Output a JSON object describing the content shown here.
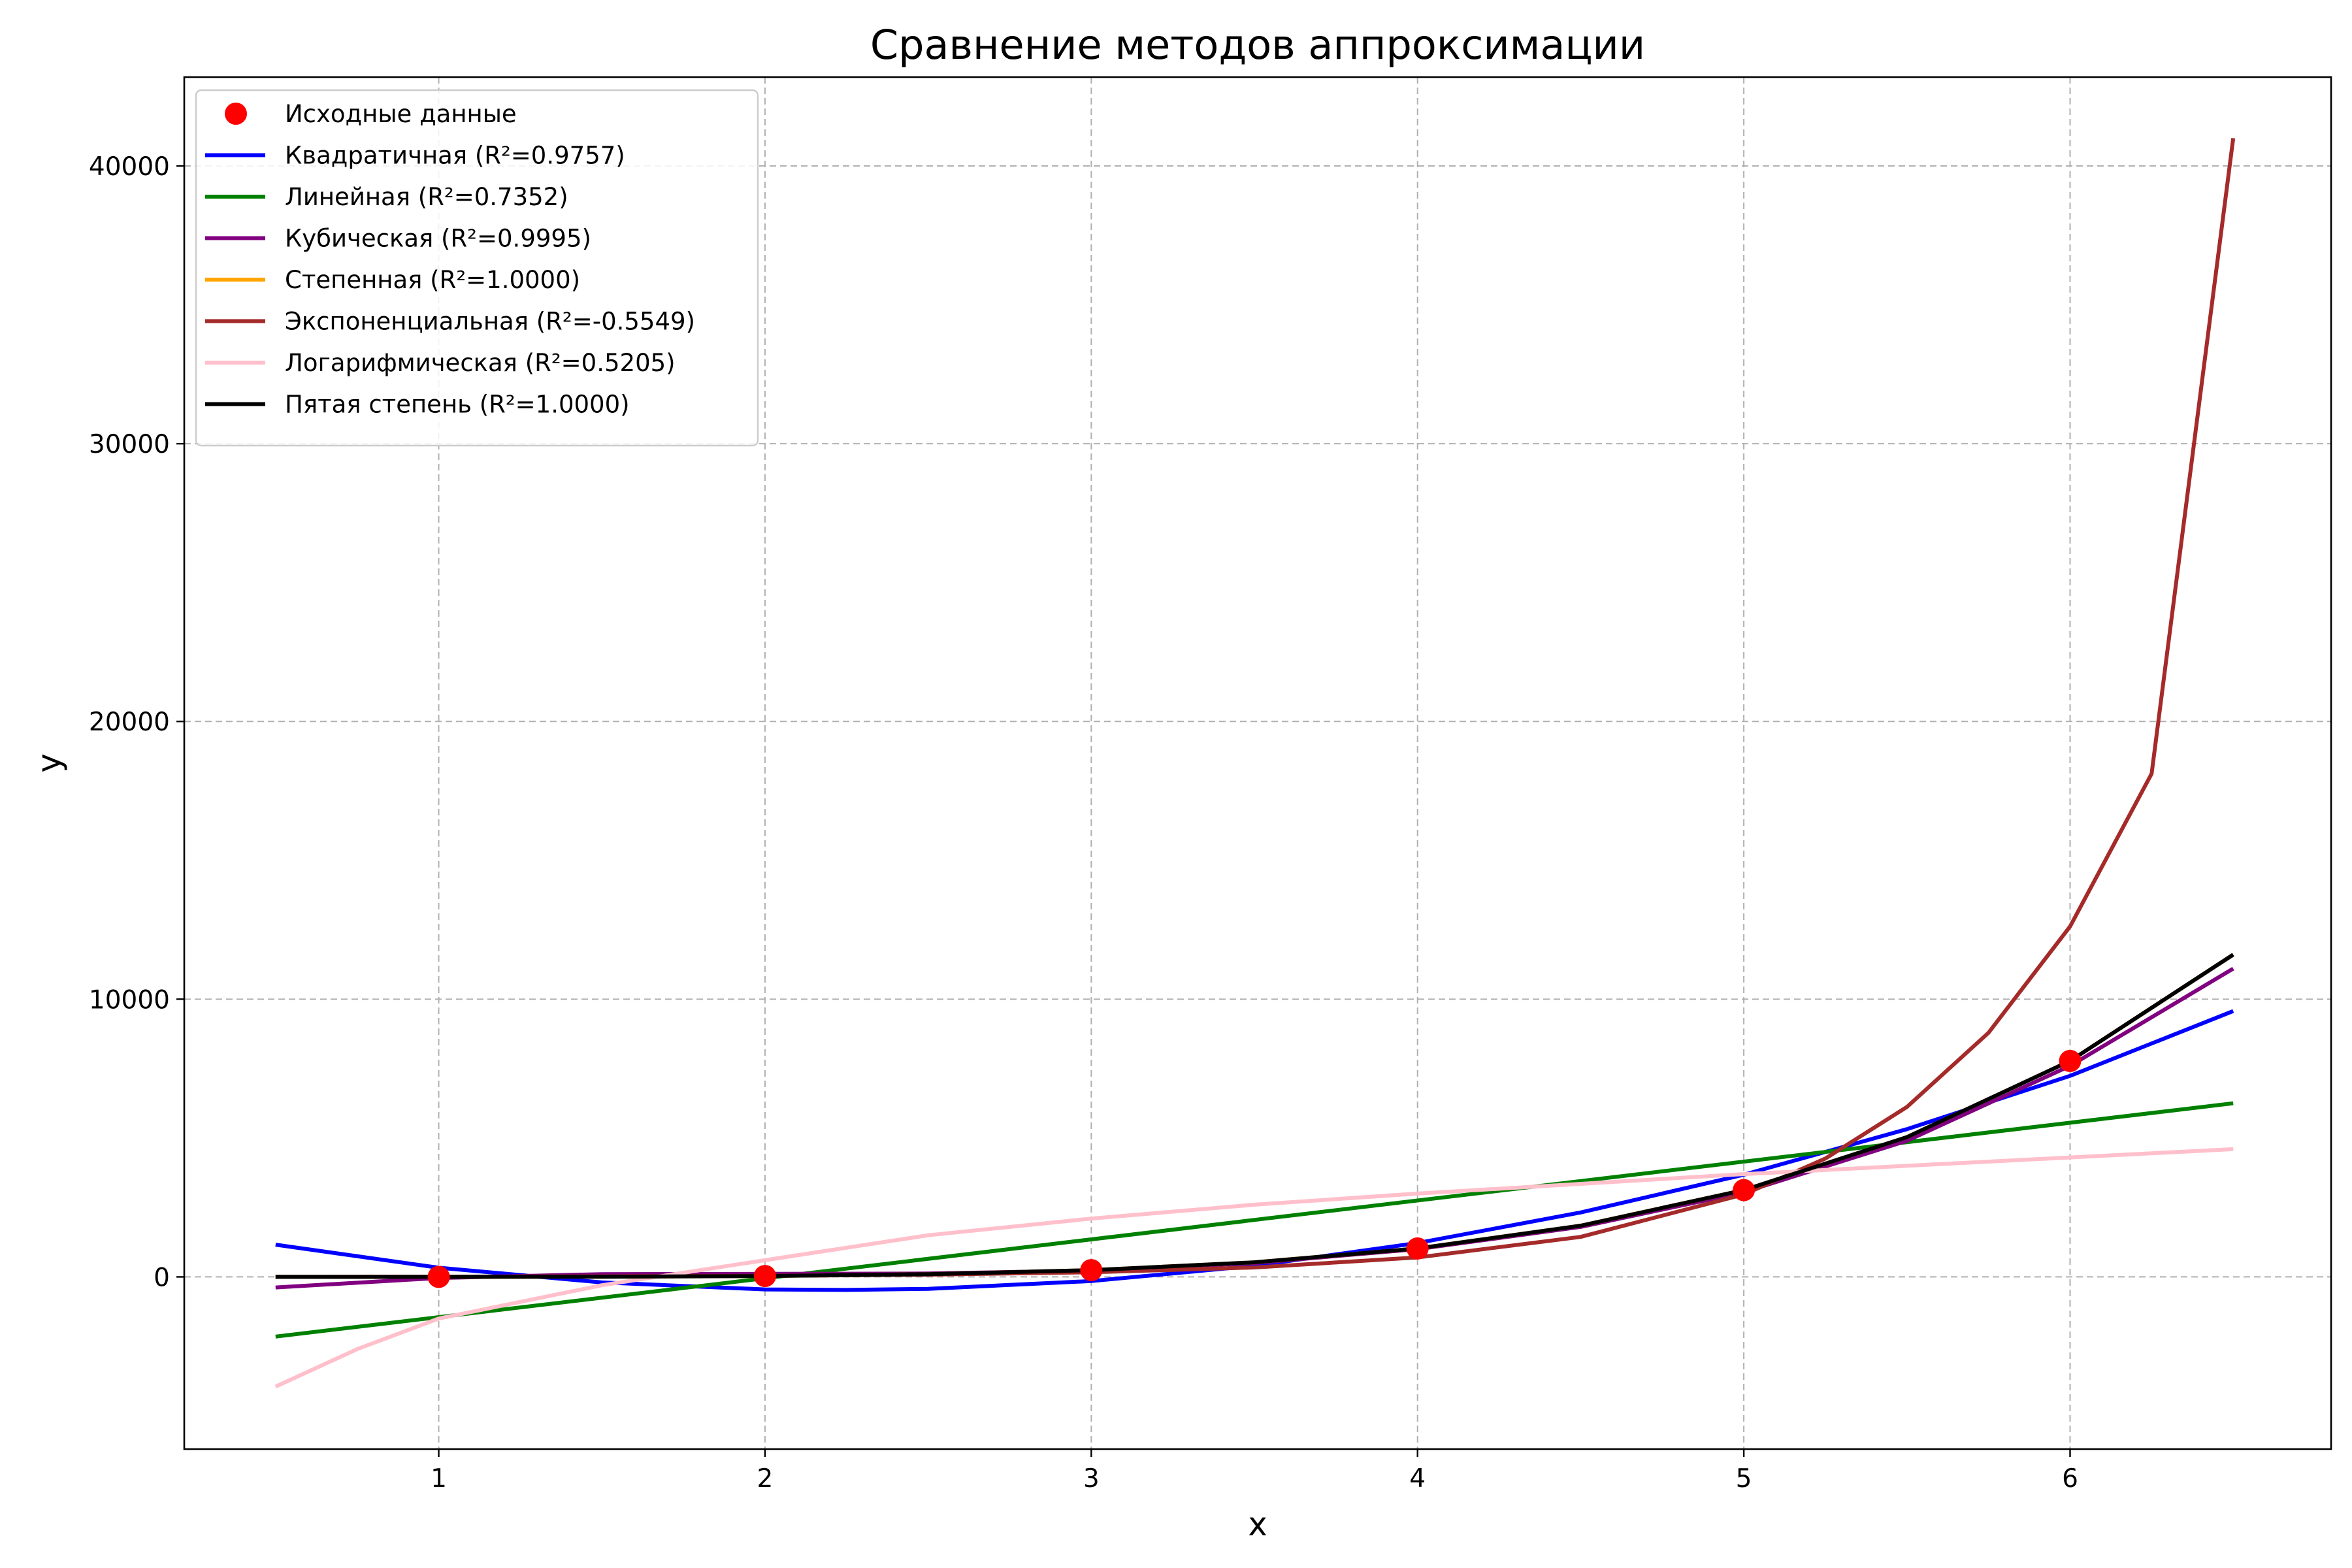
{
  "chart_data": {
    "type": "line",
    "title": "Сравнение методов аппроксимации",
    "xlabel": "x",
    "ylabel": "y",
    "xlim": [
      0.22,
      6.8
    ],
    "ylim": [
      -6200,
      43200
    ],
    "xticks": [
      1,
      2,
      3,
      4,
      5,
      6
    ],
    "yticks": [
      0,
      10000,
      20000,
      30000,
      40000
    ],
    "grid": true,
    "legend_position": "top-left",
    "scatter": {
      "name": "Исходные данные",
      "color": "#ff0000",
      "x": [
        1,
        2,
        3,
        4,
        5,
        6
      ],
      "y": [
        1,
        32,
        243,
        1024,
        3125,
        7776
      ]
    },
    "x_range": [
      0.5,
      6.5
    ],
    "series": [
      {
        "name": "Квадратичная (R²=0.9757)",
        "color": "#0000ff",
        "x": [
          0.5,
          1,
          1.5,
          2,
          2.25,
          2.5,
          3,
          3.5,
          4,
          4.5,
          5,
          5.5,
          6,
          6.5
        ],
        "y": [
          1160,
          330,
          -200,
          -450,
          -470,
          -430,
          -150,
          400,
          1220,
          2320,
          3680,
          5320,
          7240,
          9570
        ]
      },
      {
        "name": "Линейная (R²=0.7352)",
        "color": "#008000",
        "x": [
          0.5,
          6.5
        ],
        "y": [
          -2150,
          6250
        ]
      },
      {
        "name": "Кубическая (R²=0.9995)",
        "color": "#800080",
        "x": [
          0.5,
          1,
          1.5,
          2,
          2.5,
          3,
          3.5,
          4,
          4.5,
          5,
          5.5,
          6,
          6.5
        ],
        "y": [
          -380,
          -40,
          100,
          110,
          120,
          230,
          500,
          1000,
          1800,
          3050,
          4900,
          7600,
          11100
        ]
      },
      {
        "name": "Степенная (R²=1.0000)",
        "color": "#ffa500",
        "x": [
          0.5,
          1,
          1.5,
          2,
          2.5,
          3,
          3.5,
          4,
          4.5,
          5,
          5.5,
          6,
          6.5
        ],
        "y": [
          0.03,
          1,
          7.6,
          32,
          98,
          243,
          525,
          1024,
          1845,
          3125,
          5033,
          7776,
          11603
        ]
      },
      {
        "name": "Экспоненциальная (R²=-0.5549)",
        "color": "#a52a2a",
        "x": [
          0.5,
          1,
          1.5,
          2,
          2.5,
          3,
          3.5,
          4,
          4.5,
          5,
          5.25,
          5.5,
          5.75,
          6,
          6.25,
          6.5
        ],
        "y": [
          4,
          9,
          19,
          38,
          80,
          165,
          340,
          700,
          1440,
          2970,
          4260,
          6120,
          8790,
          12620,
          18120,
          41000
        ]
      },
      {
        "name": "Логарифмическая (R²=0.5205)",
        "color": "#ffc0cb",
        "x": [
          0.5,
          0.75,
          1,
          1.5,
          2,
          2.5,
          3,
          3.5,
          4,
          4.5,
          5,
          5.5,
          6,
          6.5
        ],
        "y": [
          -3950,
          -2600,
          -1500,
          -300,
          600,
          1500,
          2100,
          2600,
          3000,
          3350,
          3700,
          4000,
          4300,
          4600
        ]
      },
      {
        "name": "Пятая степень (R²=1.0000)",
        "color": "#000000",
        "x": [
          0.5,
          1,
          1.5,
          2,
          2.5,
          3,
          3.5,
          4,
          4.5,
          5,
          5.5,
          6,
          6.5
        ],
        "y": [
          0.03,
          1,
          7.6,
          32,
          98,
          243,
          525,
          1024,
          1845,
          3125,
          5033,
          7776,
          11603
        ]
      }
    ]
  }
}
